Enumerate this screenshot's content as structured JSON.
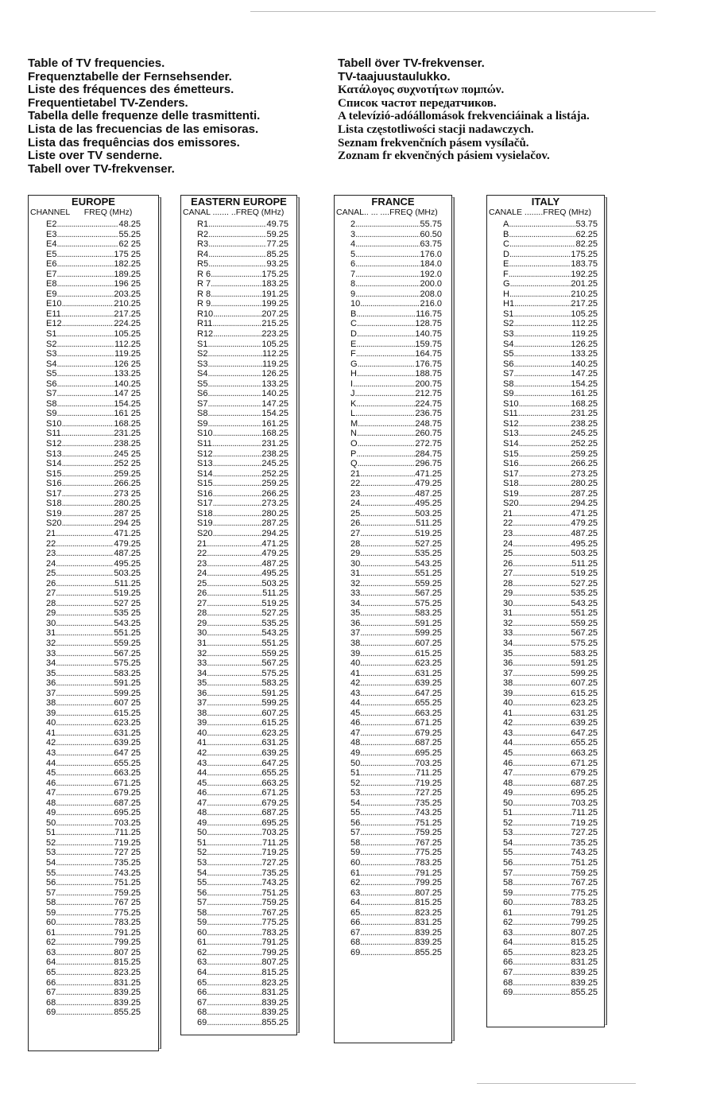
{
  "titles_left": [
    "Table of TV frequencies.",
    "Frequenztabelle der Fernsehsender.",
    "Liste des fréquences des émetteurs.",
    "Frequentietabel TV-Zenders.",
    "Tabella delle frequenze delle trasmittenti.",
    "Lista de las frecuencias de las emisoras.",
    "Lista das frequências dos emissores.",
    "Liste over TV senderne.",
    "Tabell over TV-frekvenser."
  ],
  "titles_right": [
    "Tabell över TV-frekvenser.",
    "TV-taajuustaulukko.",
    "Κατάλογος συχνοτήτων πομπών.",
    "Список частот передатчиков.",
    "A televízió-adóállomások frekvenciáinak a listája.",
    "Lista częstotliwości stacji nadawczych.",
    "Seznam frekvenčních pásem vysílačů.",
    "Zoznam fr   ekvenčných pásiem vysielačov."
  ],
  "tables": [
    {
      "title": "EUROPE",
      "col_channel": "CHANNEL",
      "col_freq": "FREQ (MHz)",
      "rows": [
        [
          "E2",
          "48.25"
        ],
        [
          "E3",
          "55.25"
        ],
        [
          "E4",
          "62 25"
        ],
        [
          "E5",
          "175 25"
        ],
        [
          "E6",
          "182.25"
        ],
        [
          "E7",
          "189.25"
        ],
        [
          "E8",
          "196 25"
        ],
        [
          "E9",
          "203.25"
        ],
        [
          "E10",
          "210.25"
        ],
        [
          "E11",
          "217.25"
        ],
        [
          "E12",
          "224.25"
        ],
        [
          "S1",
          "105.25"
        ],
        [
          "S2",
          "112.25"
        ],
        [
          "S3",
          "119.25"
        ],
        [
          "S4",
          "126 25"
        ],
        [
          "S5",
          "133.25"
        ],
        [
          "S6",
          "140.25"
        ],
        [
          "S7",
          "147 25"
        ],
        [
          "S8",
          "154.25"
        ],
        [
          "S9",
          "161 25"
        ],
        [
          "S10",
          "168.25"
        ],
        [
          "S11",
          "231.25"
        ],
        [
          "S12",
          "238.25"
        ],
        [
          "S13",
          "245 25"
        ],
        [
          "S14",
          "252 25"
        ],
        [
          "S15",
          "259.25"
        ],
        [
          "S16",
          "266.25"
        ],
        [
          "S17",
          "273 25"
        ],
        [
          "S18",
          "280.25"
        ],
        [
          "S19",
          "287 25"
        ],
        [
          "S20",
          "294 25"
        ],
        [
          "21",
          "471.25"
        ],
        [
          "22",
          "479.25"
        ],
        [
          "23",
          "487.25"
        ],
        [
          "24",
          "495.25"
        ],
        [
          "25",
          "503.25"
        ],
        [
          "26",
          "511.25"
        ],
        [
          "27",
          "519.25"
        ],
        [
          "28",
          "527 25"
        ],
        [
          "29",
          "535 25"
        ],
        [
          "30",
          "543.25"
        ],
        [
          "31",
          "551.25"
        ],
        [
          "32",
          "559.25"
        ],
        [
          "33",
          "567.25"
        ],
        [
          "34",
          "575.25"
        ],
        [
          "35",
          "583.25"
        ],
        [
          "36",
          "591.25"
        ],
        [
          "37",
          "599.25"
        ],
        [
          "38",
          "607 25"
        ],
        [
          "39",
          "615.25"
        ],
        [
          "40",
          "623.25"
        ],
        [
          "41",
          "631.25"
        ],
        [
          "42",
          "639.25"
        ],
        [
          "43",
          "647 25"
        ],
        [
          "44",
          "655.25"
        ],
        [
          "45",
          "663.25"
        ],
        [
          "46",
          "671.25"
        ],
        [
          "47",
          "679.25"
        ],
        [
          "48",
          "687.25"
        ],
        [
          "49",
          "695.25"
        ],
        [
          "50",
          "703.25"
        ],
        [
          "51",
          "711.25"
        ],
        [
          "52",
          "719.25"
        ],
        [
          "53",
          "727 25"
        ],
        [
          "54",
          "735.25"
        ],
        [
          "55",
          "743.25"
        ],
        [
          "56",
          "751.25"
        ],
        [
          "57",
          "759.25"
        ],
        [
          "58",
          "767 25"
        ],
        [
          "59",
          "775.25"
        ],
        [
          "60",
          "783.25"
        ],
        [
          "61",
          "791.25"
        ],
        [
          "62",
          "799.25"
        ],
        [
          "63",
          "807 25"
        ],
        [
          "64",
          "815.25"
        ],
        [
          "65",
          "823.25"
        ],
        [
          "66",
          "831.25"
        ],
        [
          "67",
          "839.25"
        ],
        [
          "68",
          "839.25"
        ],
        [
          "69",
          "855.25"
        ]
      ]
    },
    {
      "title": "EASTERN EUROPE",
      "col_channel": "CANAL .......",
      "col_freq": "..FREQ (MHz)",
      "rows": [
        [
          "R1",
          "49.75"
        ],
        [
          "R2",
          "59.25"
        ],
        [
          "R3",
          "77.25"
        ],
        [
          "R4",
          "85.25"
        ],
        [
          "R5",
          "93.25"
        ],
        [
          "R 6",
          "175.25"
        ],
        [
          "R 7",
          "183.25"
        ],
        [
          "R 8",
          "191.25"
        ],
        [
          "R 9",
          "199.25"
        ],
        [
          "R10",
          "207.25"
        ],
        [
          "R11",
          "215.25"
        ],
        [
          "R12",
          "223.25"
        ],
        [
          "S1",
          "105.25"
        ],
        [
          "S2",
          "112.25"
        ],
        [
          "S3",
          "119.25"
        ],
        [
          "S4",
          "126.25"
        ],
        [
          "S5",
          "133.25"
        ],
        [
          "S6",
          "140.25"
        ],
        [
          "S7",
          "147.25"
        ],
        [
          "S8",
          "154.25"
        ],
        [
          "S9",
          "161.25"
        ],
        [
          "S10",
          "168.25"
        ],
        [
          "S11",
          "231.25"
        ],
        [
          "S12",
          "238.25"
        ],
        [
          "S13",
          "245.25"
        ],
        [
          "S14",
          "252.25"
        ],
        [
          "S15",
          "259.25"
        ],
        [
          "S16",
          "266.25"
        ],
        [
          "S17",
          "273.25"
        ],
        [
          "S18",
          "280.25"
        ],
        [
          "S19",
          "287.25"
        ],
        [
          "S20",
          "294.25"
        ],
        [
          "21",
          "471.25"
        ],
        [
          "22",
          "479.25"
        ],
        [
          "23",
          "487.25"
        ],
        [
          "24",
          "495.25"
        ],
        [
          "25",
          "503.25"
        ],
        [
          "26",
          "511.25"
        ],
        [
          "27",
          "519.25"
        ],
        [
          "28",
          "527.25"
        ],
        [
          "29",
          "535.25"
        ],
        [
          "30",
          "543.25"
        ],
        [
          "31",
          "551.25"
        ],
        [
          "32",
          "559.25"
        ],
        [
          "33",
          "567.25"
        ],
        [
          "34",
          "575.25"
        ],
        [
          "35",
          "583.25"
        ],
        [
          "36",
          "591.25"
        ],
        [
          "37",
          "599.25"
        ],
        [
          "38",
          "607.25"
        ],
        [
          "39",
          "615.25"
        ],
        [
          "40",
          "623.25"
        ],
        [
          "41",
          "631.25"
        ],
        [
          "42",
          "639.25"
        ],
        [
          "43",
          "647.25"
        ],
        [
          "44",
          "655.25"
        ],
        [
          "45",
          "663.25"
        ],
        [
          "46",
          "671.25"
        ],
        [
          "47",
          "679.25"
        ],
        [
          "48",
          "687.25"
        ],
        [
          "49",
          "695.25"
        ],
        [
          "50",
          "703.25"
        ],
        [
          "51",
          "711.25"
        ],
        [
          "52",
          "719.25"
        ],
        [
          "53",
          "727.25"
        ],
        [
          "54",
          "735.25"
        ],
        [
          "55",
          "743.25"
        ],
        [
          "56",
          "751.25"
        ],
        [
          "57",
          "759.25"
        ],
        [
          "58",
          "767.25"
        ],
        [
          "59",
          "775.25"
        ],
        [
          "60",
          "783.25"
        ],
        [
          "61",
          "791.25"
        ],
        [
          "62",
          "799.25"
        ],
        [
          "63",
          "807.25"
        ],
        [
          "64",
          "815.25"
        ],
        [
          "65",
          "823.25"
        ],
        [
          "66",
          "831.25"
        ],
        [
          "67",
          "839.25"
        ],
        [
          "68",
          "839.25"
        ],
        [
          "69",
          "855.25"
        ]
      ]
    },
    {
      "title": "FRANCE",
      "col_channel": "CANAL.. ... ....",
      "col_freq": "FREQ (MHz)",
      "rows": [
        [
          "2",
          "55.75"
        ],
        [
          "3",
          "60.50"
        ],
        [
          "4",
          "63.75"
        ],
        [
          "5",
          "176.0"
        ],
        [
          "6",
          "184.0"
        ],
        [
          "7",
          "192.0"
        ],
        [
          "8",
          "200.0"
        ],
        [
          "9",
          "208.0"
        ],
        [
          "10",
          "216.0"
        ],
        [
          "B",
          "116.75"
        ],
        [
          "C",
          "128.75"
        ],
        [
          "D",
          "140.75"
        ],
        [
          "E",
          "159.75"
        ],
        [
          "F",
          "164.75"
        ],
        [
          "G",
          "176.75"
        ],
        [
          "H",
          "188.75"
        ],
        [
          "I",
          "200.75"
        ],
        [
          "J",
          "212.75"
        ],
        [
          "K",
          "224.75"
        ],
        [
          "L",
          "236.75"
        ],
        [
          "M",
          "248.75"
        ],
        [
          "N",
          "260.75"
        ],
        [
          "O",
          "272.75"
        ],
        [
          "P",
          "284.75"
        ],
        [
          "Q",
          "296.75"
        ],
        [
          "21",
          "471.25"
        ],
        [
          "22",
          "479.25"
        ],
        [
          "23",
          "487.25"
        ],
        [
          "24",
          "495.25"
        ],
        [
          "25",
          "503.25"
        ],
        [
          "26",
          "511.25"
        ],
        [
          "27",
          "519.25"
        ],
        [
          "28",
          "527.25"
        ],
        [
          "29",
          "535.25"
        ],
        [
          "30",
          "543.25"
        ],
        [
          "31",
          "551.25"
        ],
        [
          "32",
          "559.25"
        ],
        [
          "33",
          "567.25"
        ],
        [
          "34",
          "575.25"
        ],
        [
          "35",
          "583.25"
        ],
        [
          "36",
          "591.25"
        ],
        [
          "37",
          "599.25"
        ],
        [
          "38",
          "607.25"
        ],
        [
          "39",
          "615.25"
        ],
        [
          "40",
          "623.25"
        ],
        [
          "41",
          "631.25"
        ],
        [
          "42",
          "639.25"
        ],
        [
          "43",
          "647.25"
        ],
        [
          "44",
          "655.25"
        ],
        [
          "45",
          "663.25"
        ],
        [
          "46",
          "671.25"
        ],
        [
          "47",
          "679.25"
        ],
        [
          "48",
          "687.25"
        ],
        [
          "49",
          "695.25"
        ],
        [
          "50",
          "703.25"
        ],
        [
          "51",
          "711.25"
        ],
        [
          "52",
          "719.25"
        ],
        [
          "53",
          "727.25"
        ],
        [
          "54",
          "735.25"
        ],
        [
          "55",
          "743.25"
        ],
        [
          "56",
          "751.25"
        ],
        [
          "57",
          "759.25"
        ],
        [
          "58",
          "767.25"
        ],
        [
          "59",
          "775.25"
        ],
        [
          "60",
          "783.25"
        ],
        [
          "61",
          "791.25"
        ],
        [
          "62",
          "799.25"
        ],
        [
          "63",
          "807.25"
        ],
        [
          "64",
          "815.25"
        ],
        [
          "65",
          "823.25"
        ],
        [
          "66",
          "831.25"
        ],
        [
          "67",
          "839.25"
        ],
        [
          "68",
          "839.25"
        ],
        [
          "69",
          "855.25"
        ]
      ]
    },
    {
      "title": "ITALY",
      "col_channel": "CANALE ........",
      "col_freq": "FREQ (MHz)",
      "rows": [
        [
          "A",
          "53.75"
        ],
        [
          "B",
          "62.25"
        ],
        [
          "C",
          "82.25"
        ],
        [
          "D",
          "175.25"
        ],
        [
          "E",
          "183.75"
        ],
        [
          "F",
          "192.25"
        ],
        [
          "G",
          "201.25"
        ],
        [
          "H",
          "210.25"
        ],
        [
          "H1",
          "217.25"
        ],
        [
          "S1",
          "105.25"
        ],
        [
          "S2",
          "112.25"
        ],
        [
          "S3",
          "119.25"
        ],
        [
          "S4",
          "126.25"
        ],
        [
          "S5",
          "133.25"
        ],
        [
          "S6",
          "140.25"
        ],
        [
          "S7",
          "147.25"
        ],
        [
          "S8",
          "154.25"
        ],
        [
          "S9",
          "161.25"
        ],
        [
          "S10",
          "168.25"
        ],
        [
          "S11",
          "231.25"
        ],
        [
          "S12",
          "238.25"
        ],
        [
          "S13",
          "245.25"
        ],
        [
          "S14",
          "252.25"
        ],
        [
          "S15",
          "259.25"
        ],
        [
          "S16",
          "266.25"
        ],
        [
          "S17",
          "273.25"
        ],
        [
          "S18",
          "280.25"
        ],
        [
          "S19",
          "287.25"
        ],
        [
          "S20",
          "294.25"
        ],
        [
          "21",
          "471.25"
        ],
        [
          "22",
          "479.25"
        ],
        [
          "23",
          "487.25"
        ],
        [
          "24",
          "495.25"
        ],
        [
          "25",
          "503.25"
        ],
        [
          "26",
          "511.25"
        ],
        [
          "27",
          "519.25"
        ],
        [
          "28",
          "527.25"
        ],
        [
          "29",
          "535.25"
        ],
        [
          "30",
          "543.25"
        ],
        [
          "31",
          "551.25"
        ],
        [
          "32",
          "559.25"
        ],
        [
          "33",
          "567.25"
        ],
        [
          "34",
          "575.25"
        ],
        [
          "35",
          "583.25"
        ],
        [
          "36",
          "591.25"
        ],
        [
          "37",
          "599.25"
        ],
        [
          "38",
          "607.25"
        ],
        [
          "39",
          "615.25"
        ],
        [
          "40",
          "623.25"
        ],
        [
          "41",
          "631.25"
        ],
        [
          "42",
          "639.25"
        ],
        [
          "43",
          "647.25"
        ],
        [
          "44",
          "655.25"
        ],
        [
          "45",
          "663.25"
        ],
        [
          "46",
          "671.25"
        ],
        [
          "47",
          "679.25"
        ],
        [
          "48",
          "687.25"
        ],
        [
          "49",
          "695.25"
        ],
        [
          "50",
          "703.25"
        ],
        [
          "51",
          "711.25"
        ],
        [
          "52",
          "719.25"
        ],
        [
          "53",
          "727.25"
        ],
        [
          "54",
          "735.25"
        ],
        [
          "55",
          "743.25"
        ],
        [
          "56",
          "751.25"
        ],
        [
          "57",
          "759.25"
        ],
        [
          "58",
          "767.25"
        ],
        [
          "59",
          "775.25"
        ],
        [
          "60",
          "783.25"
        ],
        [
          "61",
          "791.25"
        ],
        [
          "62",
          "799.25"
        ],
        [
          "63",
          "807.25"
        ],
        [
          "64",
          "815.25"
        ],
        [
          "65",
          "823.25"
        ],
        [
          "66",
          "831.25"
        ],
        [
          "67",
          "839.25"
        ],
        [
          "68",
          "839.25"
        ],
        [
          "69",
          "855.25"
        ]
      ]
    }
  ]
}
